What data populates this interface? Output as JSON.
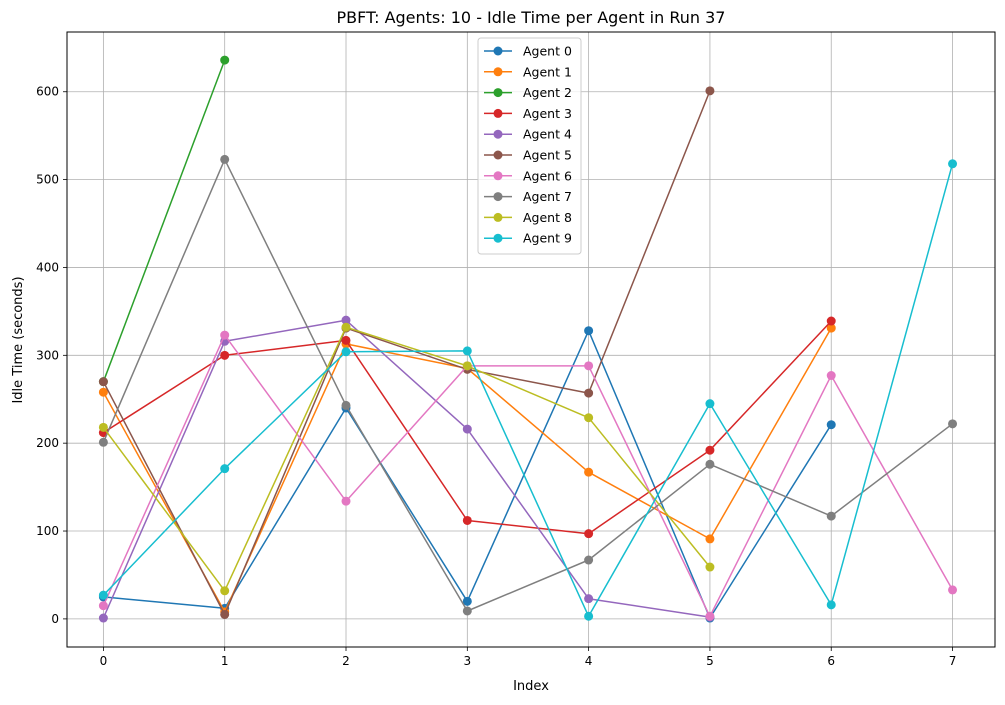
{
  "chart_data": {
    "type": "line",
    "title": "PBFT: Agents: 10 - Idle Time per Agent in Run 37",
    "xlabel": "Index",
    "ylabel": "Idle Time (seconds)",
    "xlim": [
      -0.3,
      7.35
    ],
    "ylim": [
      -32,
      668
    ],
    "xticks": [
      0,
      1,
      2,
      3,
      4,
      5,
      6,
      7
    ],
    "yticks": [
      0,
      100,
      200,
      300,
      400,
      500,
      600
    ],
    "grid": true,
    "legend_position": "top-center",
    "markers": "circle",
    "series": [
      {
        "name": "Agent 0",
        "color": "#1f77b4",
        "x": [
          0,
          1,
          2,
          3,
          4,
          5,
          6
        ],
        "values": [
          25,
          12,
          240,
          20,
          328,
          1,
          221
        ]
      },
      {
        "name": "Agent 1",
        "color": "#ff7f0e",
        "x": [
          0,
          1,
          2,
          3,
          4,
          5,
          6
        ],
        "values": [
          258,
          8,
          313,
          285,
          167,
          91,
          331
        ]
      },
      {
        "name": "Agent 2",
        "color": "#2ca02c",
        "x": [
          0,
          1
        ],
        "values": [
          270,
          636
        ]
      },
      {
        "name": "Agent 3",
        "color": "#d62728",
        "x": [
          0,
          1,
          2,
          3,
          4,
          5,
          6
        ],
        "values": [
          212,
          300,
          317,
          112,
          97,
          192,
          339
        ]
      },
      {
        "name": "Agent 4",
        "color": "#9467bd",
        "x": [
          0,
          1,
          2,
          3,
          4,
          5
        ],
        "values": [
          1,
          316,
          340,
          216,
          23,
          2
        ]
      },
      {
        "name": "Agent 5",
        "color": "#8c564b",
        "x": [
          0,
          1,
          2,
          3,
          4,
          5
        ],
        "values": [
          270,
          5,
          331,
          284,
          257,
          601
        ]
      },
      {
        "name": "Agent 6",
        "color": "#e377c2",
        "x": [
          0,
          1,
          2,
          3,
          4,
          5,
          6,
          7
        ],
        "values": [
          15,
          323,
          134,
          288,
          288,
          3,
          277,
          33
        ]
      },
      {
        "name": "Agent 7",
        "color": "#7f7f7f",
        "x": [
          0,
          1,
          2,
          3,
          4,
          5,
          6,
          7
        ],
        "values": [
          201,
          523,
          243,
          9,
          67,
          176,
          117,
          222
        ]
      },
      {
        "name": "Agent 8",
        "color": "#bcbd22",
        "x": [
          0,
          1,
          2,
          3,
          4,
          5
        ],
        "values": [
          218,
          32,
          332,
          288,
          229,
          59
        ]
      },
      {
        "name": "Agent 9",
        "color": "#17becf",
        "x": [
          0,
          1,
          2,
          3,
          4,
          5,
          6,
          7
        ],
        "values": [
          27,
          171,
          304,
          305,
          3,
          245,
          16,
          518
        ]
      }
    ]
  }
}
